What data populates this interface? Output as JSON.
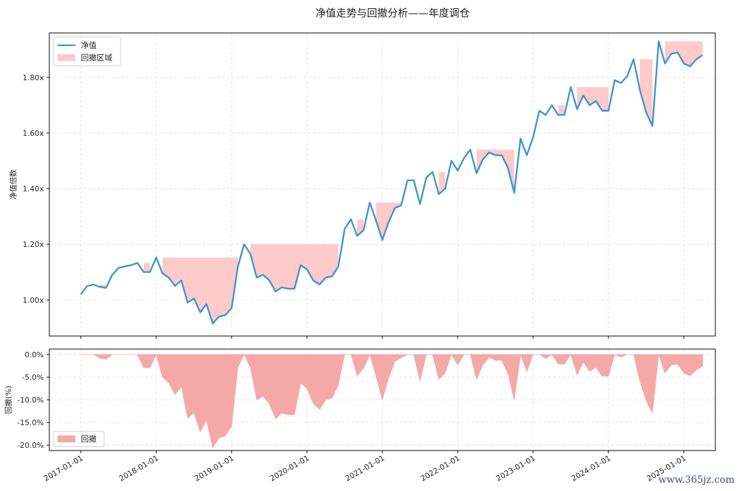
{
  "title": "净值走势与回撤分析——年度调仓",
  "watermark": "www.365jz.com",
  "colors": {
    "nav_line": "#3b94cf",
    "drawdown_fill": "#f4a9a8",
    "drawdown_region": "#ffcaca",
    "grid": "#dddddd"
  },
  "x_tick_labels": [
    "2017-01-01",
    "2018-01-01",
    "2019-01-01",
    "2020-01-01",
    "2021-01-01",
    "2022-01-01",
    "2023-01-01",
    "2024-01-01",
    "2025-01-01"
  ],
  "chart_data": [
    {
      "type": "line",
      "ylabel": "净值倍数",
      "ylim": [
        0.87,
        1.96
      ],
      "y_ticks": [
        1.0,
        1.2,
        1.4,
        1.6,
        1.8
      ],
      "y_tick_labels": [
        "1.00x",
        "1.20x",
        "1.40x",
        "1.60x",
        "1.80x"
      ],
      "legend_position": "top-left",
      "series": [
        {
          "name": "净值",
          "x": [
            "2017-01",
            "2017-02",
            "2017-03",
            "2017-04",
            "2017-05",
            "2017-06",
            "2017-07",
            "2017-08",
            "2017-09",
            "2017-10",
            "2017-11",
            "2017-12",
            "2018-01",
            "2018-02",
            "2018-03",
            "2018-04",
            "2018-05",
            "2018-06",
            "2018-07",
            "2018-08",
            "2018-09",
            "2018-10",
            "2018-11",
            "2018-12",
            "2019-01",
            "2019-02",
            "2019-03",
            "2019-04",
            "2019-05",
            "2019-06",
            "2019-07",
            "2019-08",
            "2019-09",
            "2019-10",
            "2019-11",
            "2019-12",
            "2020-01",
            "2020-02",
            "2020-03",
            "2020-04",
            "2020-05",
            "2020-06",
            "2020-07",
            "2020-08",
            "2020-09",
            "2020-10",
            "2020-11",
            "2020-12",
            "2021-01",
            "2021-02",
            "2021-03",
            "2021-04",
            "2021-05",
            "2021-06",
            "2021-07",
            "2021-08",
            "2021-09",
            "2021-10",
            "2021-11",
            "2021-12",
            "2022-01",
            "2022-02",
            "2022-03",
            "2022-04",
            "2022-05",
            "2022-06",
            "2022-07",
            "2022-08",
            "2022-09",
            "2022-10",
            "2022-11",
            "2022-12",
            "2023-01",
            "2023-02",
            "2023-03",
            "2023-04",
            "2023-05",
            "2023-06",
            "2023-07",
            "2023-08",
            "2023-09",
            "2023-10",
            "2023-11",
            "2023-12",
            "2024-01",
            "2024-02",
            "2024-03",
            "2024-04",
            "2024-05",
            "2024-06",
            "2024-07",
            "2024-08",
            "2024-09",
            "2024-10",
            "2024-11",
            "2024-12",
            "2025-01",
            "2025-02",
            "2025-03",
            "2025-04"
          ],
          "values": [
            1.02,
            1.05,
            1.055,
            1.047,
            1.043,
            1.09,
            1.115,
            1.12,
            1.125,
            1.133,
            1.1,
            1.1,
            1.152,
            1.095,
            1.08,
            1.05,
            1.07,
            0.99,
            1.005,
            0.955,
            0.985,
            0.915,
            0.94,
            0.945,
            0.97,
            1.12,
            1.2,
            1.165,
            1.08,
            1.09,
            1.07,
            1.03,
            1.045,
            1.04,
            1.04,
            1.125,
            1.11,
            1.07,
            1.055,
            1.08,
            1.085,
            1.12,
            1.255,
            1.29,
            1.23,
            1.25,
            1.35,
            1.285,
            1.215,
            1.28,
            1.33,
            1.34,
            1.43,
            1.43,
            1.345,
            1.44,
            1.46,
            1.38,
            1.4,
            1.5,
            1.465,
            1.51,
            1.54,
            1.455,
            1.505,
            1.53,
            1.52,
            1.52,
            1.475,
            1.385,
            1.58,
            1.52,
            1.585,
            1.68,
            1.665,
            1.7,
            1.665,
            1.665,
            1.765,
            1.685,
            1.735,
            1.7,
            1.715,
            1.68,
            1.68,
            1.79,
            1.78,
            1.805,
            1.865,
            1.755,
            1.675,
            1.625,
            1.93,
            1.85,
            1.885,
            1.89,
            1.85,
            1.84,
            1.865,
            1.88
          ]
        },
        {
          "name": "回撤区域"
        }
      ]
    },
    {
      "type": "area",
      "ylabel": "回撤(%)",
      "ylim": [
        -21.2,
        1.2
      ],
      "y_ticks": [
        0,
        -5,
        -10,
        -15,
        -20
      ],
      "y_tick_labels": [
        "0.0%",
        "-5.0%",
        "-10.0%",
        "-15.0%",
        "-20.0%"
      ],
      "legend_position": "bottom-left",
      "series": [
        {
          "name": "回撤",
          "x": [
            "2017-01",
            "2017-02",
            "2017-03",
            "2017-04",
            "2017-05",
            "2017-06",
            "2017-07",
            "2017-08",
            "2017-09",
            "2017-10",
            "2017-11",
            "2017-12",
            "2018-01",
            "2018-02",
            "2018-03",
            "2018-04",
            "2018-05",
            "2018-06",
            "2018-07",
            "2018-08",
            "2018-09",
            "2018-10",
            "2018-11",
            "2018-12",
            "2019-01",
            "2019-02",
            "2019-03",
            "2019-04",
            "2019-05",
            "2019-06",
            "2019-07",
            "2019-08",
            "2019-09",
            "2019-10",
            "2019-11",
            "2019-12",
            "2020-01",
            "2020-02",
            "2020-03",
            "2020-04",
            "2020-05",
            "2020-06",
            "2020-07",
            "2020-08",
            "2020-09",
            "2020-10",
            "2020-11",
            "2020-12",
            "2021-01",
            "2021-02",
            "2021-03",
            "2021-04",
            "2021-05",
            "2021-06",
            "2021-07",
            "2021-08",
            "2021-09",
            "2021-10",
            "2021-11",
            "2021-12",
            "2022-01",
            "2022-02",
            "2022-03",
            "2022-04",
            "2022-05",
            "2022-06",
            "2022-07",
            "2022-08",
            "2022-09",
            "2022-10",
            "2022-11",
            "2022-12",
            "2023-01",
            "2023-02",
            "2023-03",
            "2023-04",
            "2023-05",
            "2023-06",
            "2023-07",
            "2023-08",
            "2023-09",
            "2023-10",
            "2023-11",
            "2023-12",
            "2024-01",
            "2024-02",
            "2024-03",
            "2024-04",
            "2024-05",
            "2024-06",
            "2024-07",
            "2024-08",
            "2024-09",
            "2024-10",
            "2024-11",
            "2024-12",
            "2025-01",
            "2025-02",
            "2025-03",
            "2025-04"
          ],
          "values": [
            0,
            0,
            0,
            -0.8,
            -1.1,
            0,
            0,
            0,
            0,
            0,
            -2.9,
            -2.9,
            0,
            -5.0,
            -6.3,
            -8.9,
            -7.1,
            -14.1,
            -12.8,
            -17.1,
            -14.5,
            -20.6,
            -18.4,
            -18.0,
            -15.8,
            -2.8,
            0,
            -2.9,
            -10.0,
            -9.2,
            -10.8,
            -14.2,
            -12.9,
            -13.3,
            -13.3,
            -6.3,
            -7.5,
            -10.8,
            -12.1,
            -10.0,
            -9.6,
            -6.7,
            0,
            0,
            -4.7,
            -3.1,
            0,
            -4.8,
            -10.0,
            -5.2,
            -1.5,
            -0.7,
            0,
            0,
            -5.9,
            0,
            0,
            -5.5,
            -4.1,
            0,
            -2.3,
            0,
            0,
            -5.5,
            -2.3,
            -0.6,
            -1.3,
            -1.3,
            -4.2,
            -10.1,
            0,
            -3.8,
            0,
            0,
            -0.9,
            0,
            -2.1,
            -2.1,
            0,
            -4.5,
            -1.7,
            -3.7,
            -2.8,
            -4.8,
            -4.8,
            0,
            -0.6,
            0,
            0,
            -5.9,
            -10.2,
            -12.9,
            0,
            -4.1,
            -2.3,
            -2.1,
            -4.1,
            -4.7,
            -3.4,
            -2.6
          ]
        }
      ]
    }
  ]
}
